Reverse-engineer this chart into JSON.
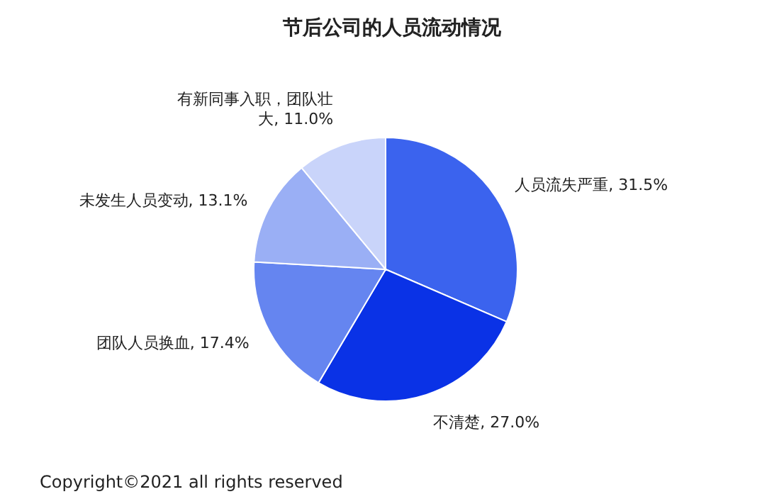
{
  "chart_data": {
    "type": "pie",
    "title": "节后公司的人员流动情况",
    "categories": [
      "人员流失严重",
      "不清楚",
      "团队人员换血",
      "未发生人员变动",
      "有新同事入职，团队壮大"
    ],
    "values": [
      31.5,
      27.0,
      17.4,
      13.1,
      11.0
    ],
    "value_labels": [
      "31.5%",
      "27.0%",
      "17.4%",
      "13.1%",
      "11.0%"
    ],
    "colors": [
      "#3b63ee",
      "#0a32e6",
      "#6585f0",
      "#9aaff5",
      "#c9d4fa"
    ],
    "annotations": [
      "Copyright©2021 all rights reserved"
    ]
  }
}
